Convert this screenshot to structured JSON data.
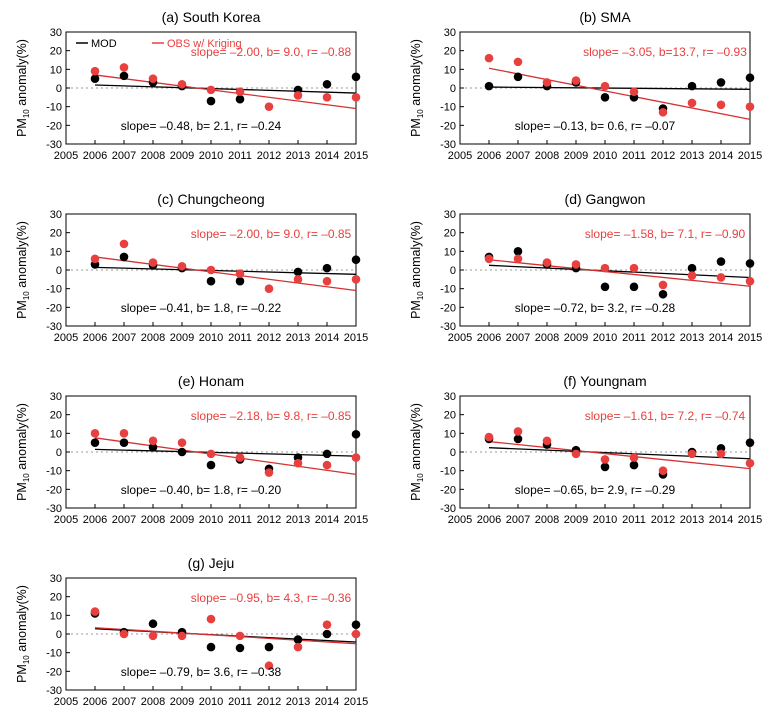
{
  "figure": {
    "ylabel_main": "PM",
    "ylabel_sub": "10",
    "ylabel_rest": " anomaly(%)",
    "legend": {
      "mod_label": "MOD",
      "obs_label": "OBS w/ Kriging"
    },
    "colors": {
      "mod": "#000000",
      "obs": "#e8403f",
      "obs_text": "#e8403f",
      "obs_line": "#d63030",
      "mod_line": "#000000",
      "zero_line": "#999999"
    }
  },
  "chart_data": [
    {
      "type": "scatter",
      "title": "(a) South Korea",
      "xlabel": "",
      "ylabel": "PM10 anomaly(%)",
      "xlim": [
        2005,
        2015
      ],
      "ylim": [
        -30,
        30
      ],
      "x_ticks": [
        "2005",
        "2006",
        "2007",
        "2008",
        "2009",
        "2010",
        "2011",
        "2012",
        "2013",
        "2014",
        "2015"
      ],
      "y_ticks": [
        "30",
        "20",
        "10",
        "0",
        "-10",
        "-20",
        "-30"
      ],
      "legend": true,
      "series": [
        {
          "name": "MOD",
          "x": [
            2006,
            2007,
            2008,
            2009,
            2010,
            2011,
            2012,
            2013,
            2014,
            2015
          ],
          "values": [
            5,
            6.5,
            3,
            1,
            -7,
            -6,
            null,
            -1,
            2,
            6
          ],
          "fit": {
            "label": "slope= –0.48, b= 2.1, r= –0.24",
            "y2006": 1.6,
            "y2015": -2.7
          }
        },
        {
          "name": "OBS w/ Kriging",
          "x": [
            2006,
            2007,
            2008,
            2009,
            2010,
            2011,
            2012,
            2013,
            2014,
            2015
          ],
          "values": [
            9,
            11,
            5,
            2,
            -1,
            -2,
            -10,
            -4,
            -5,
            -5
          ],
          "fit": {
            "label": "slope= –2.00, b= 9.0, r= –0.88",
            "y2006": 7,
            "y2015": -11
          }
        }
      ]
    },
    {
      "type": "scatter",
      "title": "(b) SMA",
      "xlabel": "",
      "ylabel": "PM10 anomaly(%)",
      "xlim": [
        2005,
        2015
      ],
      "ylim": [
        -30,
        30
      ],
      "x_ticks": [
        "2005",
        "2006",
        "2007",
        "2008",
        "2009",
        "2010",
        "2011",
        "2012",
        "2013",
        "2014",
        "2015"
      ],
      "y_ticks": [
        "30",
        "20",
        "10",
        "0",
        "-10",
        "-20",
        "-30"
      ],
      "legend": false,
      "series": [
        {
          "name": "MOD",
          "x": [
            2006,
            2007,
            2008,
            2009,
            2010,
            2011,
            2012,
            2013,
            2014,
            2015
          ],
          "values": [
            1,
            6,
            1,
            3,
            -5,
            -5,
            -11,
            1,
            3,
            5.5
          ],
          "fit": {
            "label": "slope= –0.13, b= 0.6, r= –0.07",
            "y2006": 0.5,
            "y2015": -0.7
          }
        },
        {
          "name": "OBS w/ Kriging",
          "x": [
            2006,
            2007,
            2008,
            2009,
            2010,
            2011,
            2012,
            2013,
            2014,
            2015
          ],
          "values": [
            16,
            14,
            3,
            4,
            1,
            -2,
            -13,
            -8,
            -9,
            -10
          ],
          "fit": {
            "label": "slope= –3.05, b=13.7, r= –0.93",
            "y2006": 10.6,
            "y2015": -16.8
          }
        }
      ]
    },
    {
      "type": "scatter",
      "title": "(c) Chungcheong",
      "xlabel": "",
      "ylabel": "PM10 anomaly(%)",
      "xlim": [
        2005,
        2015
      ],
      "ylim": [
        -30,
        30
      ],
      "x_ticks": [
        "2005",
        "2006",
        "2007",
        "2008",
        "2009",
        "2010",
        "2011",
        "2012",
        "2013",
        "2014",
        "2015"
      ],
      "y_ticks": [
        "30",
        "20",
        "10",
        "0",
        "-10",
        "-20",
        "-30"
      ],
      "legend": false,
      "series": [
        {
          "name": "MOD",
          "x": [
            2006,
            2007,
            2008,
            2009,
            2010,
            2011,
            2012,
            2013,
            2014,
            2015
          ],
          "values": [
            3,
            7,
            2.5,
            1,
            -6,
            -6,
            null,
            -1,
            1,
            5.5
          ],
          "fit": {
            "label": "slope= –0.41, b= 1.8, r= –0.22",
            "y2006": 1.4,
            "y2015": -2.3
          }
        },
        {
          "name": "OBS w/ Kriging",
          "x": [
            2006,
            2007,
            2008,
            2009,
            2010,
            2011,
            2012,
            2013,
            2014,
            2015
          ],
          "values": [
            6,
            14,
            4,
            2,
            0,
            -2,
            -10,
            -5,
            -6,
            -5
          ],
          "fit": {
            "label": "slope= –2.00, b= 9.0, r= –0.85",
            "y2006": 7,
            "y2015": -11
          }
        }
      ]
    },
    {
      "type": "scatter",
      "title": "(d) Gangwon",
      "xlabel": "",
      "ylabel": "PM10 anomaly(%)",
      "xlim": [
        2005,
        2015
      ],
      "ylim": [
        -30,
        30
      ],
      "x_ticks": [
        "2005",
        "2006",
        "2007",
        "2008",
        "2009",
        "2010",
        "2011",
        "2012",
        "2013",
        "2014",
        "2015"
      ],
      "y_ticks": [
        "30",
        "20",
        "10",
        "0",
        "-10",
        "-20",
        "-30"
      ],
      "legend": false,
      "series": [
        {
          "name": "MOD",
          "x": [
            2006,
            2007,
            2008,
            2009,
            2010,
            2011,
            2012,
            2013,
            2014,
            2015
          ],
          "values": [
            7,
            10,
            3,
            1,
            -9,
            -9,
            -13,
            1,
            4.5,
            3.5
          ],
          "fit": {
            "label": "slope= –0.72, b= 3.2, r= –0.28",
            "y2006": 2.5,
            "y2015": -4.0
          }
        },
        {
          "name": "OBS w/ Kriging",
          "x": [
            2006,
            2007,
            2008,
            2009,
            2010,
            2011,
            2012,
            2013,
            2014,
            2015
          ],
          "values": [
            6,
            6,
            4,
            3,
            1,
            1,
            -8,
            -3,
            -4,
            -6
          ],
          "fit": {
            "label": "slope= –1.58, b= 7.1, r= –0.90",
            "y2006": 5.5,
            "y2015": -8.7
          }
        }
      ]
    },
    {
      "type": "scatter",
      "title": "(e) Honam",
      "xlabel": "",
      "ylabel": "PM10 anomaly(%)",
      "xlim": [
        2005,
        2015
      ],
      "ylim": [
        -30,
        30
      ],
      "x_ticks": [
        "2005",
        "2006",
        "2007",
        "2008",
        "2009",
        "2010",
        "2011",
        "2012",
        "2013",
        "2014",
        "2015"
      ],
      "y_ticks": [
        "30",
        "20",
        "10",
        "0",
        "-10",
        "-20",
        "-30"
      ],
      "legend": false,
      "series": [
        {
          "name": "MOD",
          "x": [
            2006,
            2007,
            2008,
            2009,
            2010,
            2011,
            2012,
            2013,
            2014,
            2015
          ],
          "values": [
            5,
            5,
            2.5,
            0,
            -7,
            -4,
            -9,
            -3,
            -1,
            9.5
          ],
          "fit": {
            "label": "slope= –0.40, b= 1.8, r= –0.20",
            "y2006": 1.4,
            "y2015": -2.2
          }
        },
        {
          "name": "OBS w/ Kriging",
          "x": [
            2006,
            2007,
            2008,
            2009,
            2010,
            2011,
            2012,
            2013,
            2014,
            2015
          ],
          "values": [
            10,
            10,
            6,
            5,
            -1,
            -3,
            -11,
            -6,
            -7,
            -3
          ],
          "fit": {
            "label": "slope= –2.18, b= 9.8, r= –0.85",
            "y2006": 7.6,
            "y2015": -12
          }
        }
      ]
    },
    {
      "type": "scatter",
      "title": "(f) Youngnam",
      "xlabel": "",
      "ylabel": "PM10 anomaly(%)",
      "xlim": [
        2005,
        2015
      ],
      "ylim": [
        -30,
        30
      ],
      "x_ticks": [
        "2005",
        "2006",
        "2007",
        "2008",
        "2009",
        "2010",
        "2011",
        "2012",
        "2013",
        "2014",
        "2015"
      ],
      "y_ticks": [
        "30",
        "20",
        "10",
        "0",
        "-10",
        "-20",
        "-30"
      ],
      "legend": false,
      "series": [
        {
          "name": "MOD",
          "x": [
            2006,
            2007,
            2008,
            2009,
            2010,
            2011,
            2012,
            2013,
            2014,
            2015
          ],
          "values": [
            7,
            7,
            4,
            1,
            -8,
            -7,
            -12,
            0,
            2,
            5
          ],
          "fit": {
            "label": "slope= –0.65, b= 2.9, r= –0.29",
            "y2006": 2.3,
            "y2015": -3.6
          }
        },
        {
          "name": "OBS w/ Kriging",
          "x": [
            2006,
            2007,
            2008,
            2009,
            2010,
            2011,
            2012,
            2013,
            2014,
            2015
          ],
          "values": [
            8,
            11,
            6,
            -1,
            -4,
            -3,
            -10,
            -1,
            -1,
            -6
          ],
          "fit": {
            "label": "slope= –1.61, b= 7.2, r= –0.74",
            "y2006": 5.6,
            "y2015": -8.9
          }
        }
      ]
    },
    {
      "type": "scatter",
      "title": "(g) Jeju",
      "xlabel": "",
      "ylabel": "PM10 anomaly(%)",
      "xlim": [
        2005,
        2015
      ],
      "ylim": [
        -30,
        30
      ],
      "x_ticks": [
        "2005",
        "2006",
        "2007",
        "2008",
        "2009",
        "2010",
        "2011",
        "2012",
        "2013",
        "2014",
        "2015"
      ],
      "y_ticks": [
        "30",
        "20",
        "10",
        "0",
        "-10",
        "-20",
        "-30"
      ],
      "legend": false,
      "series": [
        {
          "name": "MOD",
          "x": [
            2006,
            2007,
            2008,
            2009,
            2010,
            2011,
            2012,
            2013,
            2014,
            2015
          ],
          "values": [
            11,
            1,
            5.5,
            1,
            -7,
            -7.5,
            -7,
            -3,
            0,
            5
          ],
          "fit": {
            "label": "slope= –0.79, b= 3.6, r= –0.38",
            "y2006": 2.8,
            "y2015": -4.3
          }
        },
        {
          "name": "OBS w/ Kriging",
          "x": [
            2006,
            2007,
            2008,
            2009,
            2010,
            2011,
            2012,
            2013,
            2014,
            2015
          ],
          "values": [
            12,
            0,
            -1,
            -1,
            8,
            -1,
            -17,
            -7,
            5,
            0
          ],
          "fit": {
            "label": "slope= –0.95, b= 4.3, r= –0.36",
            "y2006": 3.35,
            "y2015": -5.2
          }
        }
      ]
    }
  ]
}
